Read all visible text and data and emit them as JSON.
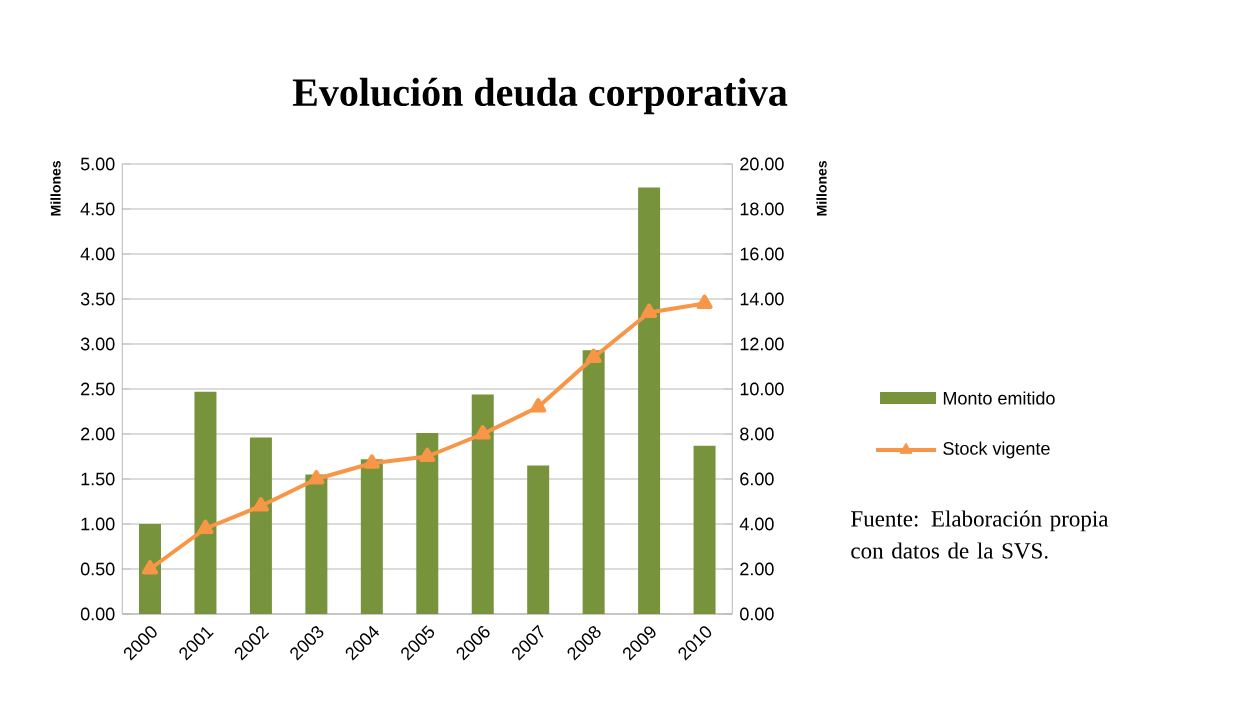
{
  "chart_data": {
    "type": "bar",
    "title": "Evolución deuda corporativa",
    "categories": [
      "2000",
      "2001",
      "2002",
      "2003",
      "2004",
      "2005",
      "2006",
      "2007",
      "2008",
      "2009",
      "2010"
    ],
    "series": [
      {
        "name": "Monto emitido",
        "color": "#77933c",
        "values": [
          1.0,
          2.47,
          1.96,
          1.55,
          1.72,
          2.01,
          2.44,
          1.65,
          2.93,
          4.74,
          1.87
        ]
      },
      {
        "name": "Stock vigente",
        "type": "line",
        "axis": "y2",
        "color": "#f79646",
        "marker": "triangle",
        "values": [
          2.0,
          3.8,
          4.8,
          6.0,
          6.7,
          7.0,
          8.0,
          9.2,
          11.4,
          13.4,
          13.8
        ]
      }
    ],
    "ylabel": "Millones",
    "y2label": "Millones",
    "ylim": [
      0,
      5
    ],
    "yticks": [
      {
        "value": 0,
        "label": "0.00"
      },
      {
        "value": 0.5,
        "label": "0.50"
      },
      {
        "value": 1,
        "label": "1.00"
      },
      {
        "value": 1.5,
        "label": "1.50"
      },
      {
        "value": 2,
        "label": "2.00"
      },
      {
        "value": 2.5,
        "label": "2.50"
      },
      {
        "value": 3,
        "label": "3.00"
      },
      {
        "value": 3.5,
        "label": "3.50"
      },
      {
        "value": 4,
        "label": "4.00"
      },
      {
        "value": 4.5,
        "label": "4.50"
      },
      {
        "value": 5,
        "label": "5.00"
      }
    ],
    "y2lim": [
      0,
      20
    ],
    "y2ticks": [
      {
        "value": 0,
        "label": "0.00"
      },
      {
        "value": 2,
        "label": "2.00"
      },
      {
        "value": 4,
        "label": "4.00"
      },
      {
        "value": 6,
        "label": "6.00"
      },
      {
        "value": 8,
        "label": "8.00"
      },
      {
        "value": 10,
        "label": "10.00"
      },
      {
        "value": 12,
        "label": "12.00"
      },
      {
        "value": 14,
        "label": "14.00"
      },
      {
        "value": 16,
        "label": "16.00"
      },
      {
        "value": 18,
        "label": "18.00"
      },
      {
        "value": 20,
        "label": "20.00"
      }
    ],
    "grid": "y",
    "legend": "right",
    "annotations": [
      "Fuente: Elaboración propia con datos de la SVS."
    ]
  }
}
